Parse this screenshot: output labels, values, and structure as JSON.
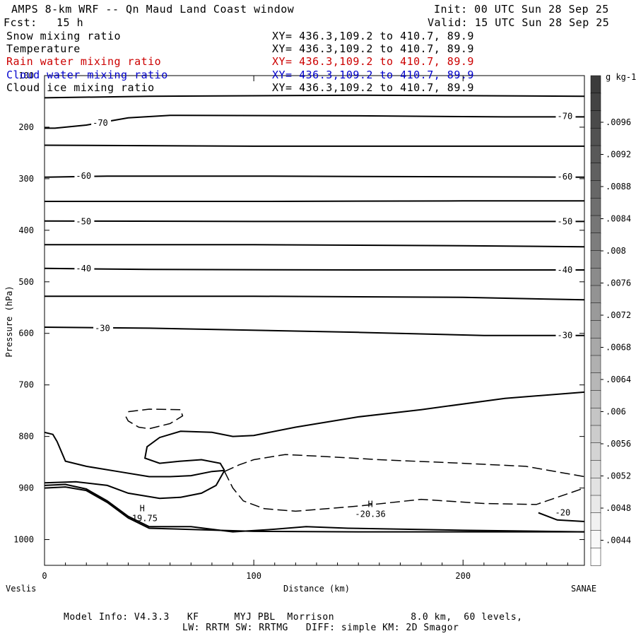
{
  "header": {
    "title": "AMPS 8-km WRF -- Qn Maud Land Coast window",
    "init": "Init: 00 UTC Sun 28 Sep 25",
    "fcst_label": "Fcst:",
    "fcst_value": "15 h",
    "valid": "Valid: 15 UTC Sun 28 Sep 25"
  },
  "fields": [
    {
      "name": "Snow mixing ratio",
      "xy": "XY= 436.3,109.2 to 410.7, 89.9",
      "color": "#000000"
    },
    {
      "name": "Temperature",
      "xy": "XY= 436.3,109.2 to 410.7, 89.9",
      "color": "#000000"
    },
    {
      "name": "Rain water mixing ratio",
      "xy": "XY= 436.3,109.2 to 410.7, 89.9",
      "color": "#cc0000"
    },
    {
      "name": "Cloud water mixing ratio",
      "xy": "XY= 436.3,109.2 to 410.7, 89.9",
      "color": "#0000cc"
    },
    {
      "name": "Cloud ice mixing ratio",
      "xy": "XY= 436.3,109.2 to 410.7, 89.9",
      "color": "#000000"
    }
  ],
  "footer": {
    "line1": "Model Info: V4.3.3   KF      MYJ PBL  Morrison             8.0 km,  60 levels,",
    "line2": "LW: RRTM SW: RRTMG   DIFF: simple KM: 2D Smagor"
  },
  "chart_data": {
    "type": "contour",
    "xlabel": "Distance (km)",
    "ylabel": "Pressure (hPa)",
    "xlim": [
      0,
      258
    ],
    "ylim": [
      1050,
      100
    ],
    "x_ticks": [
      0,
      100,
      200
    ],
    "y_ticks": [
      100,
      200,
      300,
      400,
      500,
      600,
      700,
      800,
      900,
      1000
    ],
    "x_endpoints": {
      "left": "Veslis",
      "right": "SANAE"
    },
    "colorbar": {
      "unit": "g kg-1",
      "labels": [
        ".0096",
        ".0092",
        ".0088",
        ".0084",
        ".008",
        ".0076",
        ".0072",
        ".0068",
        ".0064",
        ".006",
        ".0056",
        ".0052",
        ".0048",
        ".0044"
      ]
    },
    "temperature_isotherms": [
      {
        "points": [
          [
            0,
            143
          ],
          [
            50,
            140
          ],
          [
            150,
            138
          ],
          [
            258,
            140
          ]
        ]
      },
      {
        "points": [
          [
            0,
            202
          ],
          [
            5,
            202
          ],
          [
            20,
            196
          ],
          [
            40,
            182
          ],
          [
            60,
            177
          ],
          [
            150,
            178
          ],
          [
            220,
            180
          ],
          [
            258,
            180
          ]
        ],
        "label": "-70",
        "label_left": [
          23,
          192
        ],
        "label_right": [
          245,
          179
        ]
      },
      {
        "points": [
          [
            0,
            235
          ],
          [
            100,
            237
          ],
          [
            200,
            237
          ],
          [
            258,
            237
          ]
        ]
      },
      {
        "points": [
          [
            0,
            297
          ],
          [
            30,
            295
          ],
          [
            100,
            295
          ],
          [
            180,
            296
          ],
          [
            258,
            297
          ]
        ],
        "label": "-60",
        "label_left": [
          15,
          295
        ],
        "label_right": [
          245,
          296
        ]
      },
      {
        "points": [
          [
            0,
            344
          ],
          [
            100,
            344
          ],
          [
            200,
            343
          ],
          [
            258,
            343
          ]
        ]
      },
      {
        "points": [
          [
            0,
            382
          ],
          [
            100,
            383
          ],
          [
            200,
            383
          ],
          [
            258,
            383
          ]
        ],
        "label": "-50",
        "label_left": [
          15,
          383
        ],
        "label_right": [
          245,
          383
        ]
      },
      {
        "points": [
          [
            0,
            428
          ],
          [
            100,
            428
          ],
          [
            200,
            430
          ],
          [
            258,
            432
          ]
        ]
      },
      {
        "points": [
          [
            0,
            474
          ],
          [
            50,
            476
          ],
          [
            150,
            477
          ],
          [
            258,
            477
          ]
        ],
        "label": "-40",
        "label_left": [
          15,
          474
        ],
        "label_right": [
          245,
          477
        ]
      },
      {
        "points": [
          [
            0,
            528
          ],
          [
            100,
            528
          ],
          [
            200,
            530
          ],
          [
            258,
            535
          ]
        ]
      },
      {
        "points": [
          [
            0,
            588
          ],
          [
            50,
            590
          ],
          [
            150,
            598
          ],
          [
            210,
            604
          ],
          [
            258,
            604
          ]
        ],
        "label": "-30",
        "label_left": [
          24,
          590
        ],
        "label_right": [
          245,
          604
        ]
      },
      {
        "points": [
          [
            0,
            792
          ],
          [
            4,
            796
          ],
          [
            6,
            810
          ],
          [
            10,
            848
          ],
          [
            20,
            858
          ],
          [
            35,
            868
          ],
          [
            50,
            878
          ],
          [
            60,
            878
          ],
          [
            70,
            876
          ],
          [
            80,
            868
          ],
          [
            86,
            866
          ]
        ]
      },
      {
        "points": [
          [
            86,
            866
          ],
          [
            84,
            852
          ],
          [
            75,
            845
          ],
          [
            65,
            848
          ],
          [
            55,
            852
          ],
          [
            48,
            842
          ],
          [
            49,
            820
          ],
          [
            55,
            802
          ],
          [
            65,
            790
          ],
          [
            80,
            792
          ],
          [
            90,
            800
          ],
          [
            100,
            798
          ],
          [
            120,
            782
          ],
          [
            150,
            762
          ],
          [
            180,
            748
          ],
          [
            220,
            726
          ],
          [
            258,
            714
          ]
        ]
      },
      {
        "points": [
          [
            0,
            890
          ],
          [
            15,
            888
          ],
          [
            30,
            895
          ],
          [
            40,
            910
          ],
          [
            55,
            920
          ],
          [
            65,
            918
          ],
          [
            75,
            910
          ],
          [
            82,
            895
          ],
          [
            86,
            866
          ]
        ]
      },
      {
        "points": [
          [
            0,
            895
          ],
          [
            10,
            893
          ],
          [
            20,
            902
          ],
          [
            30,
            925
          ],
          [
            40,
            955
          ],
          [
            50,
            975
          ],
          [
            70,
            975
          ],
          [
            90,
            985
          ],
          [
            110,
            980
          ],
          [
            125,
            975
          ],
          [
            145,
            978
          ],
          [
            200,
            982
          ],
          [
            258,
            985
          ]
        ],
        "label": "-20",
        "label_right": [
          244,
          948
        ]
      },
      {
        "points": [
          [
            0,
            900
          ],
          [
            10,
            898
          ],
          [
            20,
            905
          ],
          [
            30,
            928
          ],
          [
            40,
            958
          ],
          [
            50,
            978
          ],
          [
            100,
            984
          ],
          [
            150,
            985
          ],
          [
            200,
            985
          ],
          [
            258,
            985
          ]
        ]
      },
      {
        "points": [
          [
            236,
            948
          ],
          [
            245,
            962
          ],
          [
            258,
            965
          ]
        ]
      }
    ],
    "cloud_ice_dashed": [
      {
        "points": [
          [
            40,
            752
          ],
          [
            50,
            747
          ],
          [
            65,
            748
          ],
          [
            66,
            760
          ],
          [
            60,
            775
          ],
          [
            50,
            785
          ],
          [
            45,
            782
          ],
          [
            40,
            770
          ],
          [
            38,
            755
          ]
        ]
      },
      {
        "points": [
          [
            86,
            868
          ],
          [
            93,
            855
          ],
          [
            100,
            845
          ],
          [
            115,
            835
          ],
          [
            130,
            838
          ],
          [
            160,
            845
          ],
          [
            200,
            852
          ],
          [
            230,
            858
          ],
          [
            258,
            878
          ]
        ]
      },
      {
        "points": [
          [
            86,
            868
          ],
          [
            90,
            900
          ],
          [
            95,
            925
          ],
          [
            105,
            940
          ],
          [
            120,
            945
          ],
          [
            150,
            935
          ],
          [
            180,
            922
          ],
          [
            210,
            930
          ],
          [
            235,
            932
          ],
          [
            258,
            900
          ]
        ]
      }
    ],
    "highs": [
      {
        "label": "H",
        "value": "-19.75",
        "x": 44,
        "p": 963
      },
      {
        "label": "H",
        "value": "-20.36",
        "x": 153,
        "p": 955
      }
    ]
  }
}
